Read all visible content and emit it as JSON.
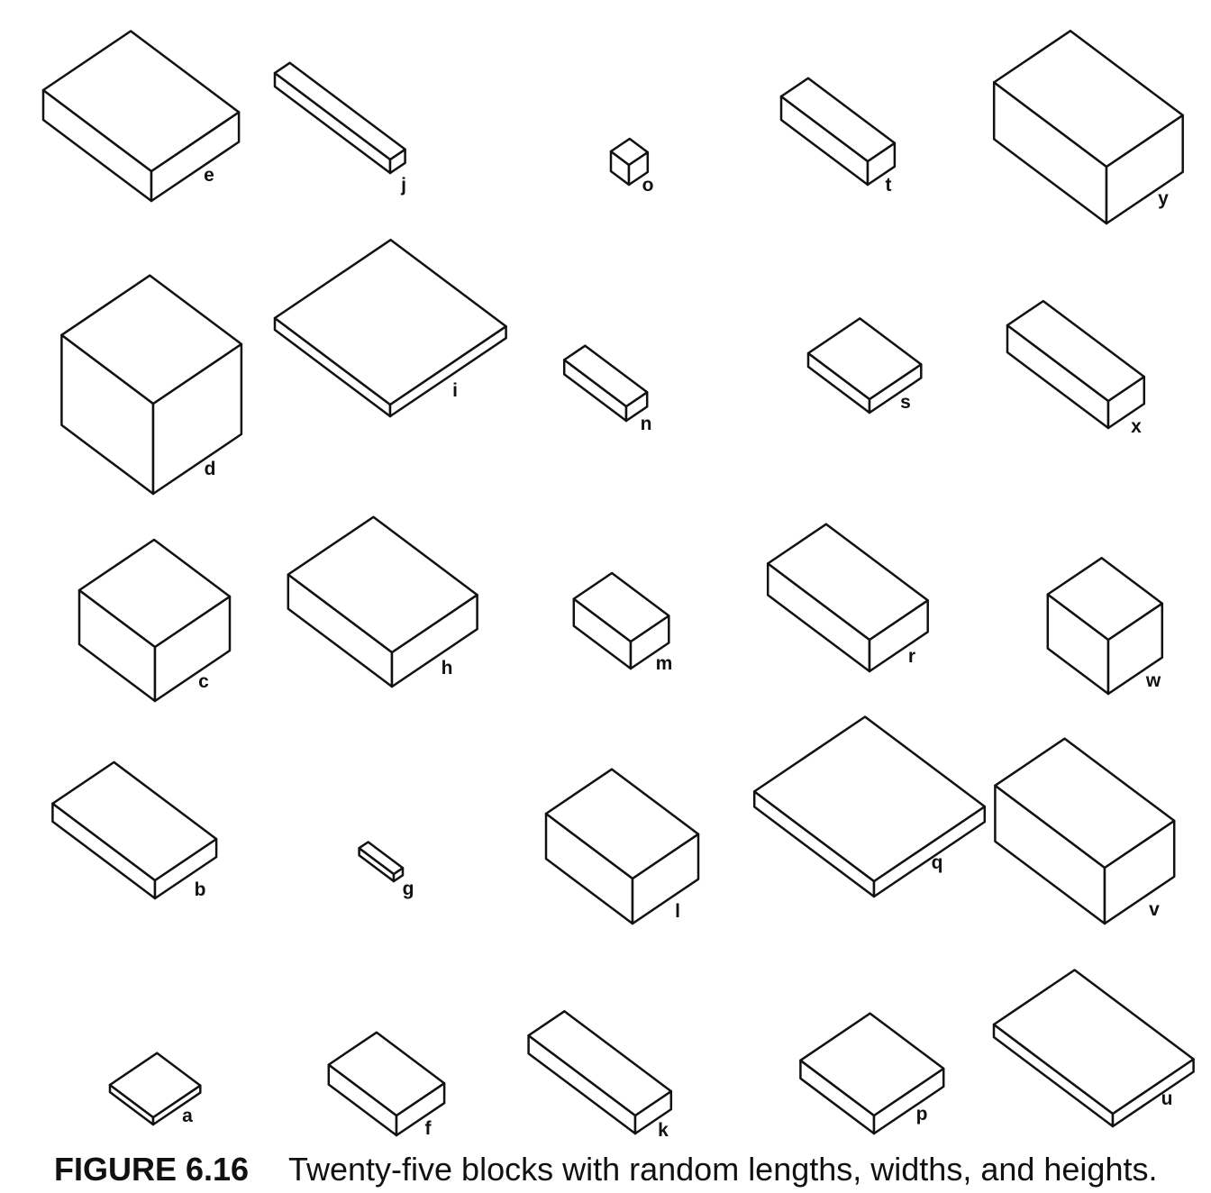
{
  "figure": {
    "label": "FIGURE 6.16",
    "caption": "Twenty-five blocks with random lengths, widths, and heights."
  },
  "blocks": [
    {
      "label": "e"
    },
    {
      "label": "j"
    },
    {
      "label": "o"
    },
    {
      "label": "t"
    },
    {
      "label": "y"
    },
    {
      "label": "d"
    },
    {
      "label": "i"
    },
    {
      "label": "n"
    },
    {
      "label": "s"
    },
    {
      "label": "x"
    },
    {
      "label": "c"
    },
    {
      "label": "h"
    },
    {
      "label": "m"
    },
    {
      "label": "r"
    },
    {
      "label": "w"
    },
    {
      "label": "b"
    },
    {
      "label": "g"
    },
    {
      "label": "l"
    },
    {
      "label": "q"
    },
    {
      "label": "v"
    },
    {
      "label": "a"
    },
    {
      "label": "f"
    },
    {
      "label": "k"
    },
    {
      "label": "p"
    },
    {
      "label": "u"
    }
  ]
}
